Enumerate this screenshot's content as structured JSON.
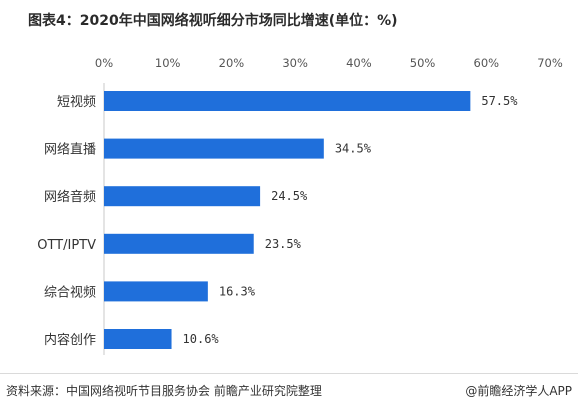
{
  "title": "图表4：2020年中国网络视听细分市场同比增速(单位：%)",
  "footer": {
    "source": "资料来源：中国网络视听节目服务协会 前瞻产业研究院整理",
    "watermark_app": "@前瞻经济学人APP"
  },
  "colors": {
    "bar": "#1f6fdb",
    "axis": "#c8c8c8"
  },
  "chart_data": {
    "type": "bar",
    "orientation": "horizontal",
    "title": "图表4：2020年中国网络视听细分市场同比增速(单位：%)",
    "categories": [
      "短视频",
      "网络直播",
      "网络音频",
      "OTT/IPTV",
      "综合视频",
      "内容创作"
    ],
    "values": [
      57.5,
      34.5,
      24.5,
      23.5,
      16.3,
      10.6
    ],
    "value_labels": [
      "57.5%",
      "34.5%",
      "24.5%",
      "23.5%",
      "16.3%",
      "10.6%"
    ],
    "xticks": [
      "0%",
      "10%",
      "20%",
      "30%",
      "40%",
      "50%",
      "60%",
      "70%"
    ],
    "xlim": [
      0,
      70
    ],
    "grid": false,
    "legend": "none"
  }
}
